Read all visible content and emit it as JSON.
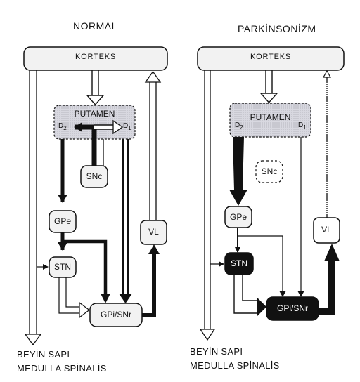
{
  "panels": [
    {
      "title": "NORMAL",
      "cortex": "KORTEKS",
      "putamen": "PUTAMEN",
      "d2": "D",
      "d2_sub": "2",
      "d1": "D",
      "d1_sub": "1",
      "snc": "SNc",
      "gpe": "GPe",
      "stn": "STN",
      "gpi_snr": "GPi/SNr",
      "vl": "VL",
      "footer_line1": "BEYİN SAPI",
      "footer_line2": "MEDULLA SPİNALİS"
    },
    {
      "title": "PARKİNSONİZM",
      "cortex": "KORTEKS",
      "putamen": "PUTAMEN",
      "d2": "D",
      "d2_sub": "2",
      "d1": "D",
      "d1_sub": "1",
      "snc": "SNc",
      "gpe": "GPe",
      "stn": "STN",
      "gpi_snr": "GPi/SNr",
      "vl": "VL",
      "footer_line1": "BEYİN SAPI",
      "footer_line2": "MEDULLA SPİNALİS"
    }
  ],
  "colors": {
    "box_fill": "#f2f2f2",
    "putamen_fill": "#d0d0d8",
    "dark_fill": "#111111",
    "line": "#111111"
  }
}
